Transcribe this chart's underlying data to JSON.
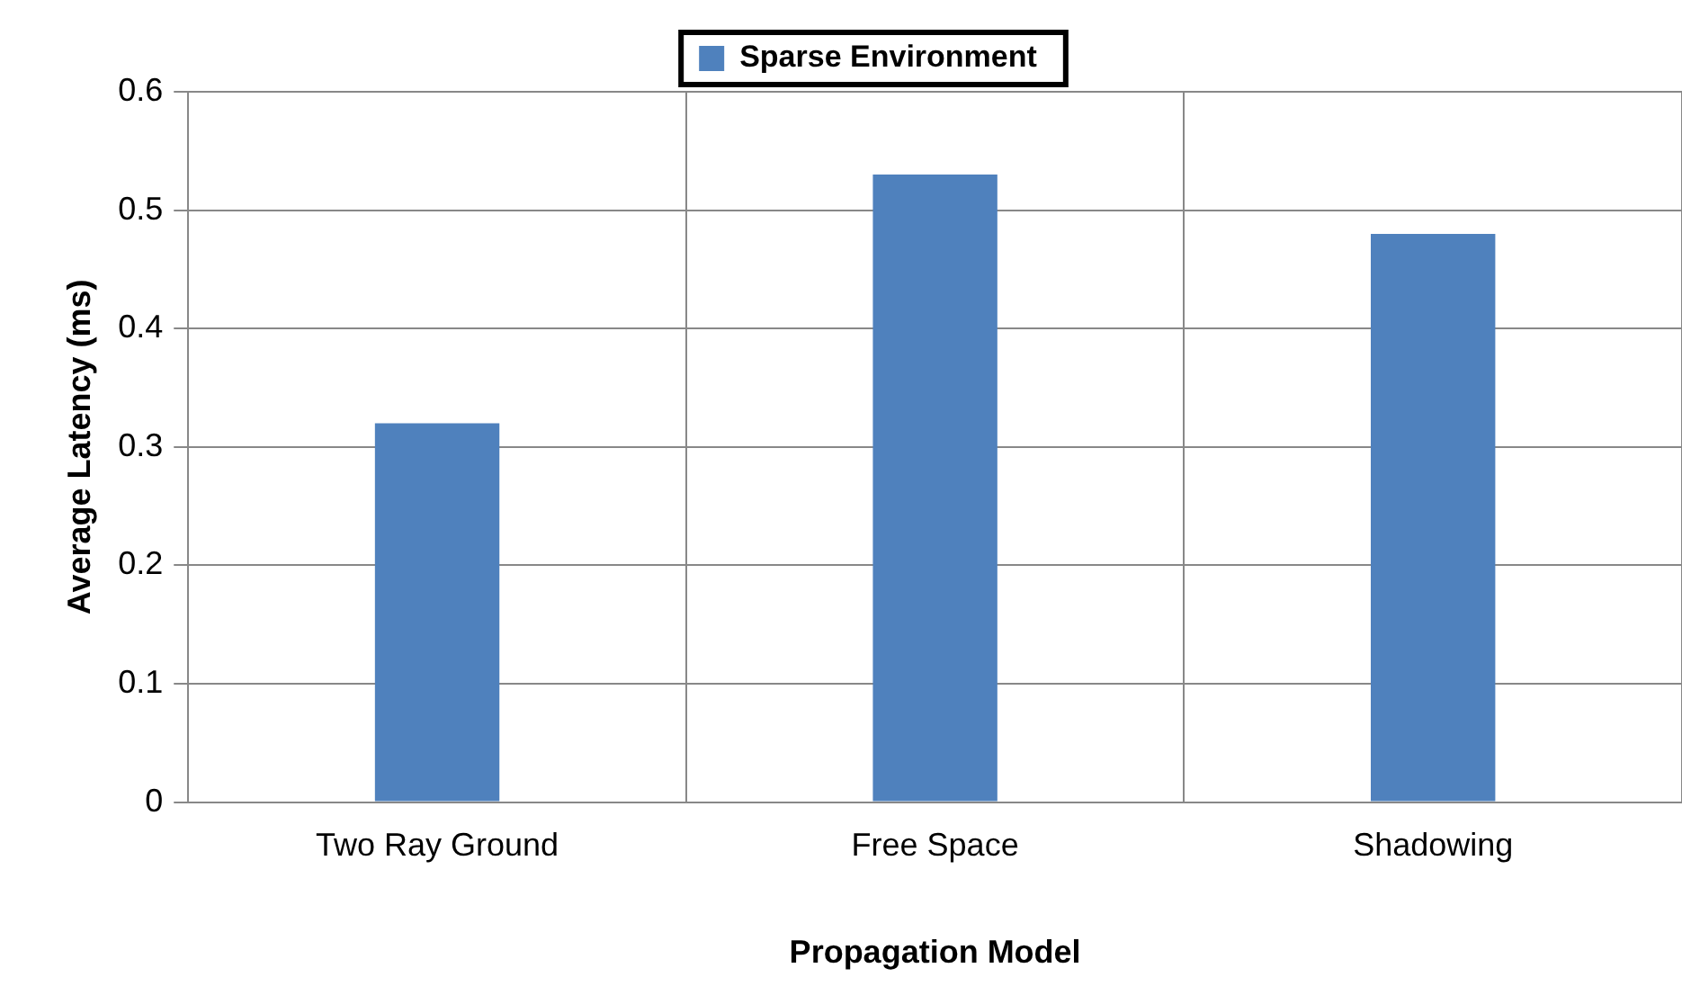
{
  "chart_data": {
    "type": "bar",
    "xlabel": "Propagation Model",
    "ylabel": "Average Latency (ms)",
    "categories": [
      "Two Ray Ground",
      "Free Space",
      "Shadowing"
    ],
    "series": [
      {
        "name": "Sparse Environment",
        "color": "#4f81bd",
        "values": [
          0.32,
          0.53,
          0.48
        ]
      }
    ],
    "ylim": [
      0,
      0.6
    ],
    "yticks": [
      0,
      0.1,
      0.2,
      0.3,
      0.4,
      0.5,
      0.6
    ],
    "grid": true,
    "legend": "top"
  }
}
